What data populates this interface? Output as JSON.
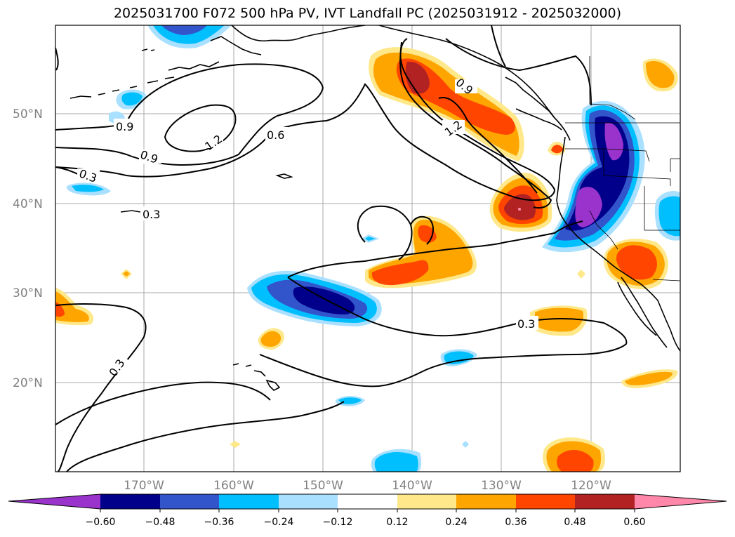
{
  "title": "2025031700 F072 500 hPa PV, IVT Landfall PC (2025031912 - 2025032000)",
  "map": {
    "lat_ticks": [
      "50°N",
      "40°N",
      "30°N",
      "20°N"
    ],
    "lon_ticks": [
      "170°W",
      "160°W",
      "150°W",
      "140°W",
      "130°W",
      "120°W"
    ],
    "contour_labels": [
      "0.9",
      "1.2",
      "0.6",
      "0.9",
      "0.3",
      "0.3",
      "0.9",
      "1.2",
      "0.3",
      "0.3"
    ]
  },
  "colorbar": {
    "ticks": [
      "−0.60",
      "−0.48",
      "−0.36",
      "−0.24",
      "−0.12",
      "0.12",
      "0.24",
      "0.36",
      "0.48",
      "0.60"
    ],
    "colors": [
      "#9933cc",
      "#00008b",
      "#3355cc",
      "#00bfff",
      "#aae0ff",
      "#ffffff",
      "#ffe88a",
      "#ffa500",
      "#ff4500",
      "#b22222",
      "#ff88aa"
    ]
  },
  "colors": {
    "neg_light": "#aae0ff",
    "neg_mid": "#00bfff",
    "neg_strong": "#3355cc",
    "neg_dark": "#00008b",
    "neg_extreme": "#9933cc",
    "pos_light": "#ffe88a",
    "pos_mid": "#ffa500",
    "pos_strong": "#ff4500",
    "pos_dark": "#b22222",
    "pos_extreme": "#ff88aa"
  }
}
